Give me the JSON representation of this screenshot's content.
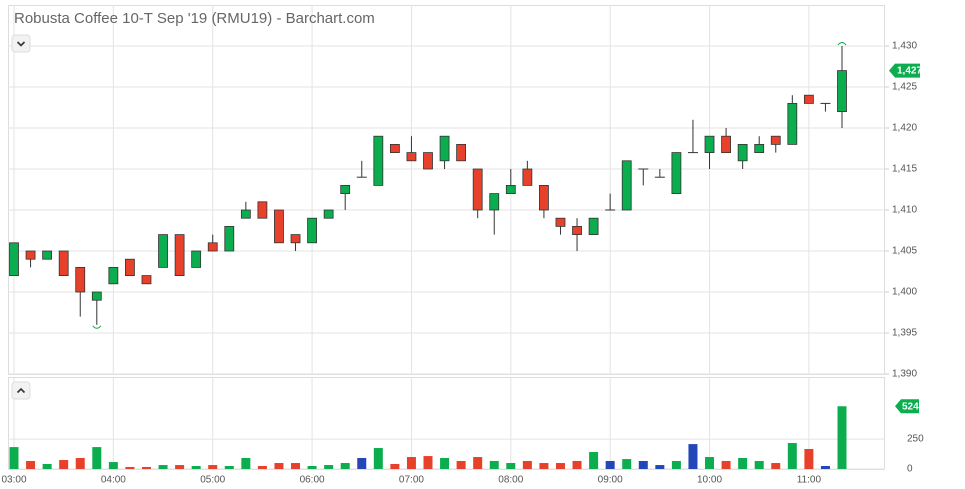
{
  "chart_data": [
    {
      "type": "candlestick",
      "title": "Robusta Coffee 10-T Sep '19 (RMU19) - Barchart.com",
      "open": [
        1402,
        1405,
        1404,
        1405,
        1403,
        1399,
        1401,
        1404,
        1402,
        1403,
        1407,
        1403,
        1406,
        1405,
        1409,
        1411,
        1410,
        1407,
        1406,
        1409,
        1412,
        1414,
        1413,
        1418,
        1417,
        1417,
        1416,
        1418,
        1415,
        1410,
        1412,
        1415,
        1413,
        1409,
        1408,
        1407,
        1410,
        1410,
        1415,
        1414,
        1412,
        1417,
        1417,
        1419,
        1416,
        1417,
        1419,
        1418,
        1424,
        1423,
        1422
      ],
      "high": [
        1406,
        1405,
        1405,
        1405,
        1403,
        1400,
        1403,
        1404,
        1402,
        1407,
        1407,
        1405,
        1407,
        1408,
        1411,
        1411,
        1410,
        1407,
        1409,
        1410,
        1413,
        1416,
        1419,
        1418,
        1419,
        1417,
        1419,
        1418,
        1415,
        1412,
        1415,
        1416,
        1413,
        1409,
        1409,
        1409,
        1412,
        1416,
        1415,
        1415,
        1417,
        1421,
        1419,
        1420,
        1418,
        1419,
        1419,
        1424,
        1424,
        1423,
        1430
      ],
      "low": [
        1402,
        1403,
        1404,
        1402,
        1397,
        1396,
        1401,
        1402,
        1401,
        1403,
        1402,
        1403,
        1405,
        1405,
        1409,
        1409,
        1406,
        1405,
        1406,
        1409,
        1410,
        1414,
        1413,
        1417,
        1416,
        1415,
        1415,
        1416,
        1409,
        1407,
        1412,
        1413,
        1409,
        1407,
        1405,
        1407,
        1410,
        1410,
        1413,
        1414,
        1412,
        1417,
        1415,
        1417,
        1415,
        1417,
        1417,
        1418,
        1423,
        1422,
        1420
      ],
      "close": [
        1406,
        1404,
        1405,
        1402,
        1400,
        1400,
        1403,
        1402,
        1401,
        1407,
        1402,
        1405,
        1405,
        1408,
        1410,
        1409,
        1406,
        1406,
        1409,
        1410,
        1413,
        1414,
        1419,
        1417,
        1416,
        1415,
        1419,
        1416,
        1410,
        1412,
        1413,
        1413,
        1410,
        1408,
        1407,
        1409,
        1410,
        1416,
        1415,
        1414,
        1417,
        1417,
        1419,
        1417,
        1418,
        1418,
        1418,
        1423,
        1423,
        1423,
        1427
      ],
      "up_color": "#0cad4f",
      "down_color": "#e8412b",
      "ylim": [
        1390,
        1435
      ],
      "yticks": [
        {
          "value": 1390,
          "label": "1,390"
        },
        {
          "value": 1395,
          "label": "1,395"
        },
        {
          "value": 1400,
          "label": "1,400"
        },
        {
          "value": 1405,
          "label": "1,405"
        },
        {
          "value": 1410,
          "label": "1,410"
        },
        {
          "value": 1415,
          "label": "1,415"
        },
        {
          "value": 1420,
          "label": "1,420"
        },
        {
          "value": 1425,
          "label": "1,425"
        },
        {
          "value": 1430,
          "label": "1,430"
        }
      ],
      "last_price": {
        "value": 1427,
        "label": "1,427"
      },
      "grid": true
    },
    {
      "type": "bar",
      "categories": [
        "03:00",
        null,
        null,
        null,
        null,
        null,
        "04:00",
        null,
        null,
        null,
        null,
        null,
        "05:00",
        null,
        null,
        null,
        null,
        null,
        "06:00",
        null,
        null,
        null,
        null,
        null,
        "07:00",
        null,
        null,
        null,
        null,
        null,
        "08:00",
        null,
        null,
        null,
        null,
        null,
        "09:00",
        null,
        null,
        null,
        null,
        null,
        "10:00",
        null,
        null,
        null,
        null,
        null,
        "11:00",
        null,
        null
      ],
      "values": [
        183,
        67,
        42,
        75,
        92,
        183,
        58,
        17,
        17,
        33,
        33,
        25,
        33,
        25,
        92,
        25,
        50,
        50,
        25,
        33,
        50,
        92,
        175,
        42,
        100,
        108,
        92,
        67,
        100,
        67,
        50,
        67,
        50,
        50,
        67,
        142,
        67,
        83,
        67,
        33,
        67,
        208,
        100,
        67,
        92,
        67,
        50,
        217,
        167,
        25,
        524
      ],
      "up_color": "#0cad4f",
      "down_color": "#e8412b",
      "flat_color": "#2346b8",
      "ylim": [
        0,
        760
      ],
      "yticks": [
        0,
        250
      ],
      "last_value": 524,
      "grid": true
    }
  ]
}
